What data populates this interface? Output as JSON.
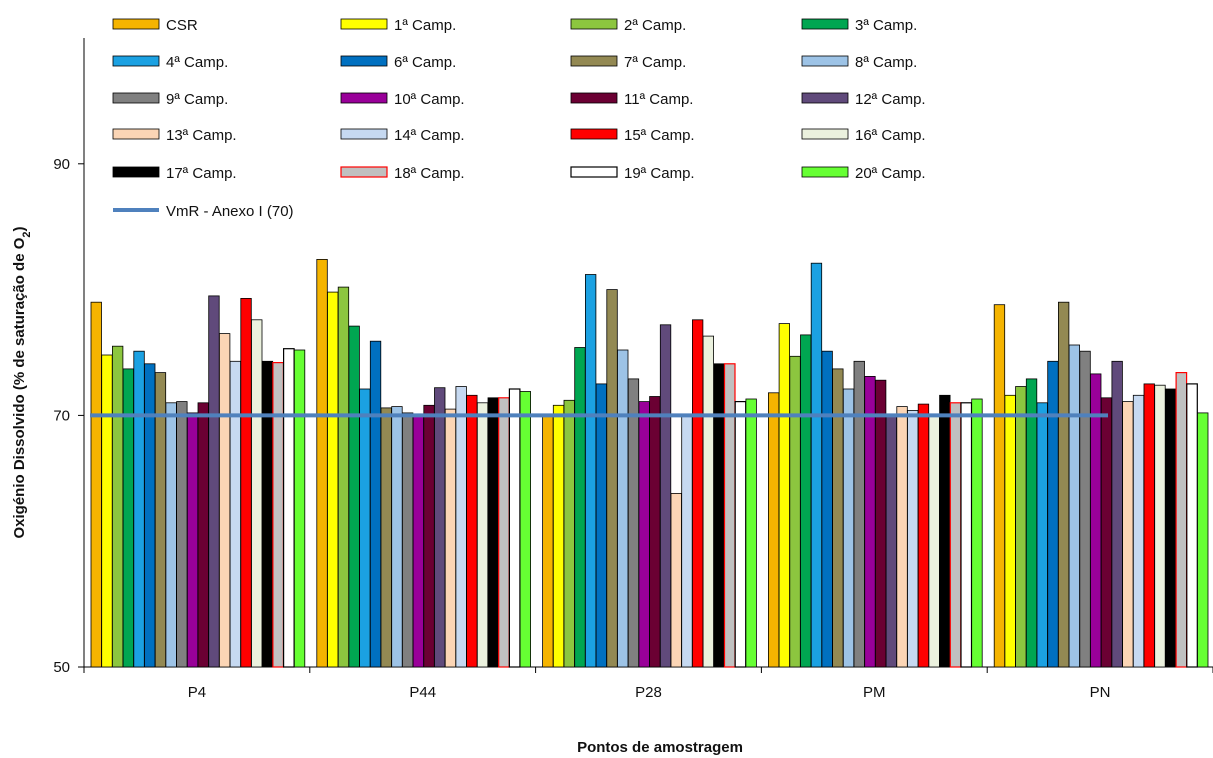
{
  "chart_data": {
    "type": "bar",
    "title": "",
    "xlabel": "Pontos de amostragem",
    "ylabel": "Oxigénio Dissolvido (% de saturação de O",
    "ylabel_sub": "2",
    "ylabel_end": ")",
    "ylim": [
      50,
      100
    ],
    "yticks": [
      50,
      70,
      90
    ],
    "grid": false,
    "legend_position": "top",
    "categories": [
      "P4",
      "P44",
      "P28",
      "PM",
      "PN"
    ],
    "series": [
      {
        "name": "CSR",
        "color": "#f5b400",
        "values": [
          79,
          82.4,
          70,
          71.8,
          78.8
        ]
      },
      {
        "name": "1ª Camp.",
        "color": "#ffff00",
        "values": [
          74.8,
          79.8,
          70.8,
          77.3,
          71.6
        ]
      },
      {
        "name": "2ª Camp.",
        "color": "#8cc63f",
        "values": [
          75.5,
          80.2,
          71.2,
          74.7,
          72.3
        ]
      },
      {
        "name": "3ª Camp.",
        "color": "#00a651",
        "values": [
          73.7,
          77.1,
          75.4,
          76.4,
          72.9
        ]
      },
      {
        "name": "4ª Camp.",
        "color": "#1ba1e2",
        "values": [
          75.1,
          72.1,
          81.2,
          82.1,
          71
        ]
      },
      {
        "name": "6ª Camp.",
        "color": "#0070c0",
        "values": [
          74.1,
          75.9,
          72.5,
          75.1,
          74.3
        ]
      },
      {
        "name": "7ª Camp.",
        "color": "#938953",
        "values": [
          73.4,
          70.6,
          80,
          73.7,
          79
        ]
      },
      {
        "name": "8ª Camp.",
        "color": "#9dc3e6",
        "values": [
          71,
          70.7,
          75.2,
          72.1,
          75.6
        ]
      },
      {
        "name": "9ª Camp.",
        "color": "#808080",
        "values": [
          71.1,
          70.2,
          72.9,
          74.3,
          75.1
        ]
      },
      {
        "name": "10ª Camp.",
        "color": "#990099",
        "values": [
          70.2,
          70,
          71.1,
          73.1,
          73.3
        ]
      },
      {
        "name": "11ª Camp.",
        "color": "#6b0033",
        "values": [
          71,
          70.8,
          71.5,
          72.8,
          71.4
        ]
      },
      {
        "name": "12ª Camp.",
        "color": "#604a7b",
        "values": [
          79.5,
          72.2,
          77.2,
          70,
          74.3
        ]
      },
      {
        "name": "13ª Camp.",
        "color": "#fbd5b5",
        "values": [
          76.5,
          70.5,
          63.8,
          70.7,
          71.1
        ]
      },
      {
        "name": "14ª Camp.",
        "color": "#c6d9f1",
        "values": [
          74.3,
          72.3,
          70,
          70.4,
          71.6
        ]
      },
      {
        "name": "15ª Camp.",
        "color": "#ff0000",
        "values": [
          79.3,
          71.6,
          77.6,
          70.9,
          72.5
        ]
      },
      {
        "name": "16ª Camp.",
        "color": "#ebf1de",
        "values": [
          77.6,
          71,
          76.3,
          70,
          72.4
        ]
      },
      {
        "name": "17ª Camp.",
        "color": "#000000",
        "values": [
          74.3,
          71.4,
          74.1,
          71.6,
          72.1
        ]
      },
      {
        "name": "18ª Camp.",
        "color": "#c0c0c0",
        "border": "#ff0000",
        "values": [
          74.2,
          71.4,
          74.1,
          71,
          73.4
        ]
      },
      {
        "name": "19ª Camp.",
        "color": "#ffffff",
        "border": "#000000",
        "values": [
          75.3,
          72.1,
          71.1,
          71,
          72.5
        ]
      },
      {
        "name": "20ª Camp.",
        "color": "#66ff33",
        "values": [
          75.2,
          71.9,
          71.3,
          71.3,
          70.2
        ]
      }
    ],
    "reference_line": {
      "name": "VmR - Anexo I (70)",
      "value": 70,
      "color": "#4f81bd"
    }
  }
}
